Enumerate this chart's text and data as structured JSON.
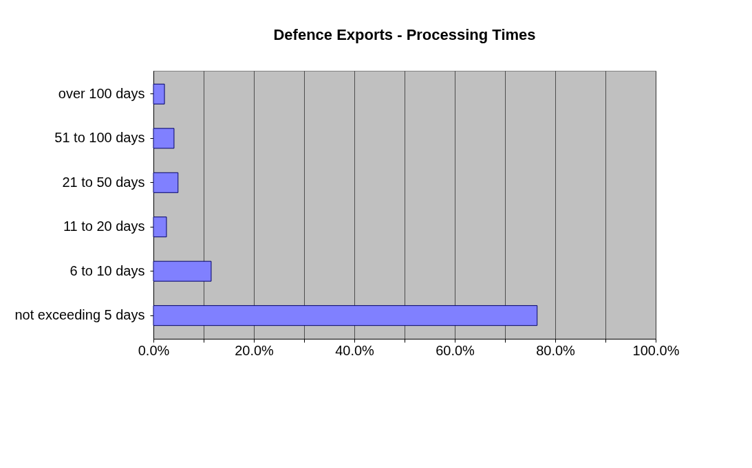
{
  "chart_data": {
    "type": "bar",
    "orientation": "horizontal",
    "title": "Defence Exports - Processing Times",
    "categories": [
      "over 100 days",
      "51 to 100 days",
      "21 to 50 days",
      "11 to 20 days",
      "6 to 10 days",
      "not exceeding 5 days"
    ],
    "values": [
      2.2,
      4.1,
      4.9,
      2.6,
      11.5,
      76.4
    ],
    "color": "#8080ff",
    "xlim": [
      0,
      100
    ],
    "xticks": [
      {
        "value": 0,
        "label": "0.0%"
      },
      {
        "value": 10,
        "label": null
      },
      {
        "value": 20,
        "label": "20.0%"
      },
      {
        "value": 30,
        "label": null
      },
      {
        "value": 40,
        "label": "40.0%"
      },
      {
        "value": 50,
        "label": null
      },
      {
        "value": 60,
        "label": "60.0%"
      },
      {
        "value": 70,
        "label": null
      },
      {
        "value": 80,
        "label": "80.0%"
      },
      {
        "value": 90,
        "label": null
      },
      {
        "value": 100,
        "label": "100.0%"
      }
    ],
    "grid": "x"
  }
}
